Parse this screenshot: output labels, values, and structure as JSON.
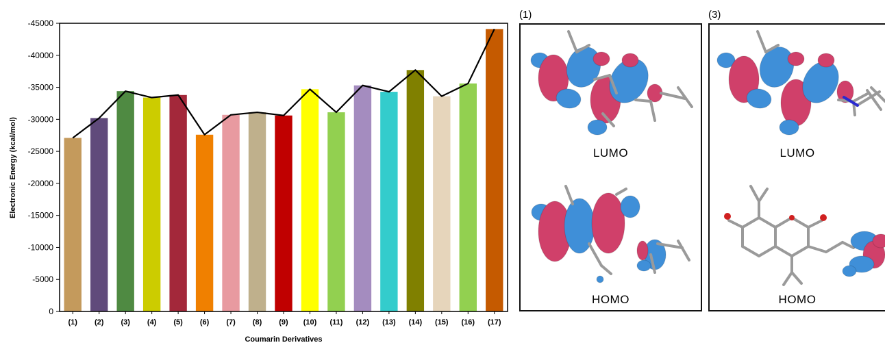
{
  "chart_data": {
    "type": "bar",
    "xlabel": "Coumarin Derivatives",
    "ylabel": "Electronic Energy (kcal/mol)",
    "ylim": [
      0,
      -45000
    ],
    "y_ticks": [
      "0",
      "-5000",
      "-10000",
      "-15000",
      "-20000",
      "-25000",
      "-30000",
      "-35000",
      "-40000",
      "-45000"
    ],
    "y_tick_values": [
      0,
      -5000,
      -10000,
      -15000,
      -20000,
      -25000,
      -30000,
      -35000,
      -40000,
      -45000
    ],
    "categories": [
      "(1)",
      "(2)",
      "(3)",
      "(4)",
      "(5)",
      "(6)",
      "(7)",
      "(8)",
      "(9)",
      "(10)",
      "(11)",
      "(12)",
      "(13)",
      "(14)",
      "(15)",
      "(16)",
      "(17)"
    ],
    "values": [
      -27100,
      -30200,
      -34400,
      -33400,
      -33800,
      -27600,
      -30700,
      -31100,
      -30600,
      -34700,
      -31100,
      -35300,
      -34300,
      -37700,
      -33600,
      -35600,
      -44100
    ],
    "bar_colors": [
      "#c49a5c",
      "#604a7b",
      "#4f8a42",
      "#cccc00",
      "#a3283a",
      "#f08000",
      "#e89aa0",
      "#bfb08c",
      "#c00000",
      "#ffff00",
      "#92d050",
      "#a48cbf",
      "#33cccc",
      "#808000",
      "#e6d5bb",
      "#92d050",
      "#c55a00"
    ],
    "line_series": {
      "color": "#000000",
      "values": [
        -27100,
        -30200,
        -34400,
        -33400,
        -33800,
        -27600,
        -30700,
        -31100,
        -30600,
        -34700,
        -31100,
        -35300,
        -34300,
        -37700,
        -33600,
        -35600,
        -44100
      ]
    },
    "grid": false
  },
  "panels": [
    {
      "id": "(1)",
      "labels": {
        "top": "LUMO",
        "bottom": "HOMO"
      }
    },
    {
      "id": "(3)",
      "labels": {
        "top": "LUMO",
        "bottom": "HOMO"
      }
    }
  ],
  "orbital_colors": {
    "positive": "#3f8fd8",
    "negative": "#d0406a",
    "bond": "#9a9a9a"
  }
}
